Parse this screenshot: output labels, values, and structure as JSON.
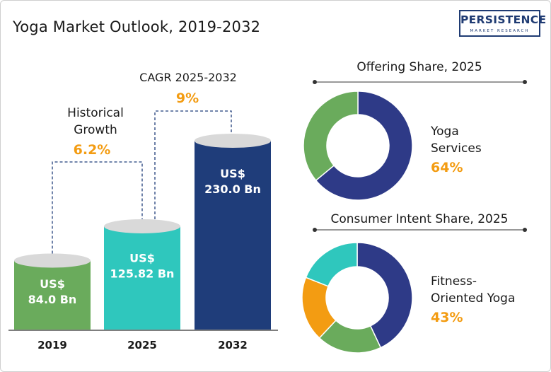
{
  "title": "Yoga Market Outlook, 2019-2032",
  "logo": {
    "main": "PERSISTENCE",
    "sub": "MARKET RESEARCH",
    "color": "#1f3b73"
  },
  "annotations": {
    "historical_label_1": "Historical",
    "historical_label_2": "Growth",
    "historical_value": "6.2%",
    "cagr_label": "CAGR 2025-2032",
    "cagr_value": "9%"
  },
  "chart_data": [
    {
      "type": "bar",
      "categories": [
        "2019",
        "2025",
        "2032"
      ],
      "values": [
        84.0,
        125.82,
        230.0
      ],
      "value_labels": [
        [
          "US$",
          "84.0 Bn"
        ],
        [
          "US$",
          "125.82 Bn"
        ],
        [
          "US$",
          "230.0 Bn"
        ]
      ],
      "colors": [
        "#6aab5c",
        "#2fc7bd",
        "#1f3d7a"
      ],
      "unit": "US$ Bn"
    },
    {
      "type": "pie",
      "title": "Offering Share, 2025",
      "highlight_label": [
        "Yoga",
        "Services"
      ],
      "highlight_value": "64%",
      "slices": [
        {
          "value": 64,
          "color": "#2e3a87"
        },
        {
          "value": 36,
          "color": "#6aab5c"
        }
      ]
    },
    {
      "type": "pie",
      "title": "Consumer Intent Share, 2025",
      "highlight_label": [
        "Fitness-",
        "Oriented Yoga"
      ],
      "highlight_value": "43%",
      "slices": [
        {
          "value": 43,
          "color": "#2e3a87"
        },
        {
          "value": 19,
          "color": "#6aab5c"
        },
        {
          "value": 19,
          "color": "#f39c12"
        },
        {
          "value": 19,
          "color": "#2fc7bd"
        }
      ]
    }
  ],
  "colors": {
    "accent": "#f39c12",
    "text": "#1a1a1a"
  }
}
